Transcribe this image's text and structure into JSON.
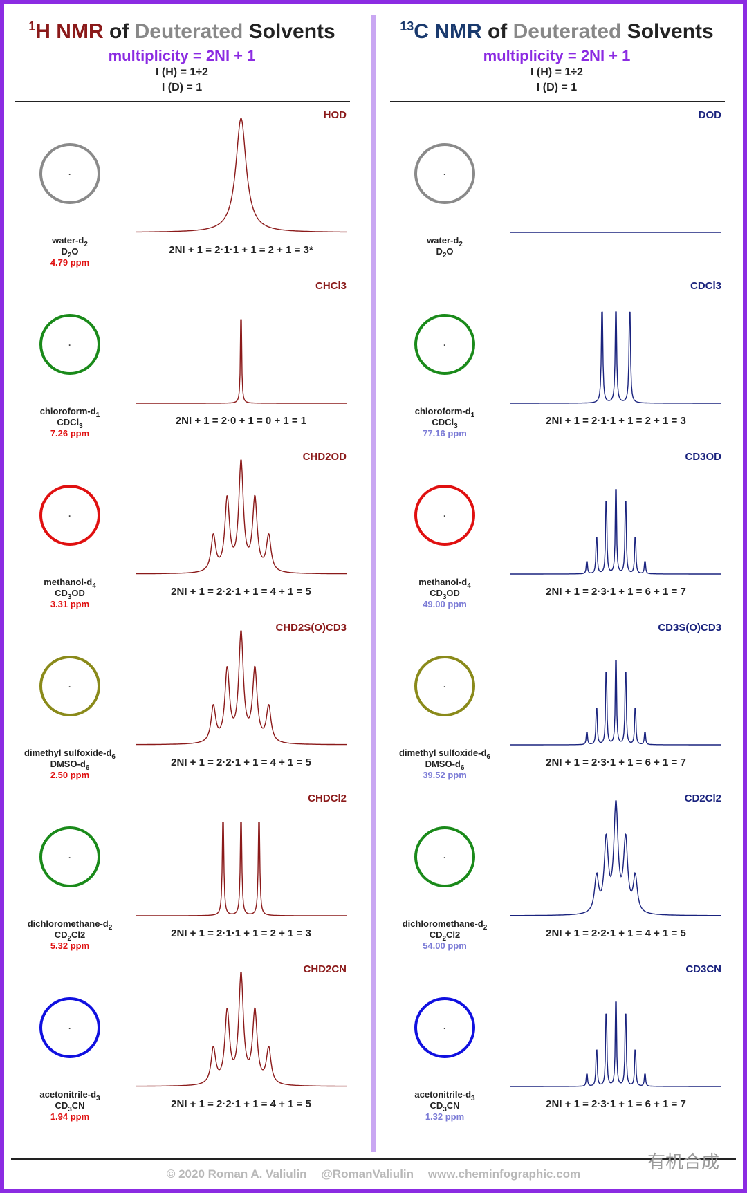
{
  "header": {
    "h": {
      "title_sup": "1",
      "title_nucleus": "H NMR",
      "title_of": " of ",
      "title_deut": "Deuterated",
      "title_solv": " Solvents",
      "multiplicity": "multiplicity = 2NI + 1",
      "spin_h": "I (H) = 1÷2",
      "spin_d": "I (D) = 1"
    },
    "c": {
      "title_sup": "13",
      "title_nucleus": "C NMR",
      "title_of": " of ",
      "title_deut": "Deuterated",
      "title_solv": " Solvents",
      "multiplicity": "multiplicity = 2NI + 1",
      "spin_h": "I (H) = 1÷2",
      "spin_d": "I (D) = 1"
    }
  },
  "colors": {
    "h_spectrum": "#8b1a1a",
    "c_spectrum": "#1a237e",
    "accent_purple": "#8b2be2",
    "ppm_h": "#e01010",
    "ppm_c": "#7b7bd6",
    "water_ring": "#8a8a8a",
    "chloroform_ring": "#1a8a1a",
    "methanol_ring": "#e01010",
    "dmso_ring": "#8a8a1a",
    "dcm_ring": "#1a8a1a",
    "acn_ring": "#1010e0"
  },
  "rows": [
    {
      "key": "water",
      "name": "water-d",
      "name_sub": "2",
      "formula": "D",
      "formula_sub": "2",
      "formula_tail": "O",
      "h_ppm": "4.79 ppm",
      "c_ppm": "",
      "h_label": "HOD",
      "c_label": "DOD",
      "h_equation": "2NI + 1 = 2·1·1 + 1 = 2 + 1 = 3*",
      "c_equation": "",
      "ring_color_key": "water_ring"
    },
    {
      "key": "chloroform",
      "name": "chloroform-d",
      "name_sub": "1",
      "formula": "CDCl",
      "formula_sub": "3",
      "formula_tail": "",
      "h_ppm": "7.26 ppm",
      "c_ppm": "77.16 ppm",
      "h_label": "CHCl3",
      "c_label": "CDCl3",
      "h_equation": "2NI + 1 = 2·0 + 1 = 0 + 1 = 1",
      "c_equation": "2NI + 1 = 2·1·1 + 1 = 2 + 1 = 3",
      "ring_color_key": "chloroform_ring"
    },
    {
      "key": "methanol",
      "name": "methanol-d",
      "name_sub": "4",
      "formula": "CD",
      "formula_sub": "3",
      "formula_tail": "OD",
      "h_ppm": "3.31 ppm",
      "c_ppm": "49.00 ppm",
      "h_label": "CHD2OD",
      "c_label": "CD3OD",
      "h_equation": "2NI + 1 = 2·2·1 + 1 = 4 + 1 = 5",
      "c_equation": "2NI + 1 = 2·3·1 + 1 = 6 + 1 = 7",
      "ring_color_key": "methanol_ring"
    },
    {
      "key": "dmso",
      "name": "dimethyl sulfoxide-d",
      "name_sub": "6",
      "formula": "DMSO-d",
      "formula_sub": "6",
      "formula_tail": "",
      "h_ppm": "2.50 ppm",
      "c_ppm": "39.52 ppm",
      "h_label": "CHD2S(O)CD3",
      "c_label": "CD3S(O)CD3",
      "h_equation": "2NI + 1 = 2·2·1 + 1 = 4 + 1 = 5",
      "c_equation": "2NI + 1 = 2·3·1 + 1 = 6 + 1 = 7",
      "ring_color_key": "dmso_ring"
    },
    {
      "key": "dcm",
      "name": "dichloromethane-d",
      "name_sub": "2",
      "formula": "CD",
      "formula_sub": "2",
      "formula_tail": "Cl2",
      "h_ppm": "5.32 ppm",
      "c_ppm": "54.00 ppm",
      "h_label": "CHDCl2",
      "c_label": "CD2Cl2",
      "h_equation": "2NI + 1 = 2·1·1 + 1 = 2 + 1 = 3",
      "c_equation": "2NI + 1 = 2·2·1 + 1 = 4 + 1 = 5",
      "ring_color_key": "dcm_ring"
    },
    {
      "key": "acn",
      "name": "acetonitrile-d",
      "name_sub": "3",
      "formula": "CD",
      "formula_sub": "3",
      "formula_tail": "CN",
      "h_ppm": "1.94 ppm",
      "c_ppm": "1.32 ppm",
      "h_label": "CHD2CN",
      "c_label": "CD3CN",
      "h_equation": "2NI + 1 = 2·2·1 + 1 = 4 + 1 = 5",
      "c_equation": "2NI + 1 = 2·3·1 + 1 = 6 + 1 = 7",
      "ring_color_key": "acn_ring"
    }
  ],
  "chart_data": [
    {
      "type": "line",
      "panel": "1H NMR",
      "solvent": "water-d2",
      "multiplicity": 3,
      "relative_intensities": [
        1,
        1,
        1
      ],
      "pattern": "broad singlet"
    },
    {
      "type": "line",
      "panel": "13C NMR",
      "solvent": "water-d2",
      "multiplicity": 0,
      "relative_intensities": [],
      "pattern": "baseline"
    },
    {
      "type": "line",
      "panel": "1H NMR",
      "solvent": "chloroform-d1",
      "multiplicity": 1,
      "relative_intensities": [
        1
      ]
    },
    {
      "type": "line",
      "panel": "13C NMR",
      "solvent": "chloroform-d1",
      "multiplicity": 3,
      "relative_intensities": [
        1,
        1,
        1
      ]
    },
    {
      "type": "line",
      "panel": "1H NMR",
      "solvent": "methanol-d4",
      "multiplicity": 5,
      "relative_intensities": [
        1,
        2,
        3,
        2,
        1
      ]
    },
    {
      "type": "line",
      "panel": "13C NMR",
      "solvent": "methanol-d4",
      "multiplicity": 7,
      "relative_intensities": [
        1,
        3,
        6,
        7,
        6,
        3,
        1
      ]
    },
    {
      "type": "line",
      "panel": "1H NMR",
      "solvent": "dimethyl sulfoxide-d6",
      "multiplicity": 5,
      "relative_intensities": [
        1,
        2,
        3,
        2,
        1
      ]
    },
    {
      "type": "line",
      "panel": "13C NMR",
      "solvent": "dimethyl sulfoxide-d6",
      "multiplicity": 7,
      "relative_intensities": [
        1,
        3,
        6,
        7,
        6,
        3,
        1
      ]
    },
    {
      "type": "line",
      "panel": "1H NMR",
      "solvent": "dichloromethane-d2",
      "multiplicity": 3,
      "relative_intensities": [
        1,
        1,
        1
      ]
    },
    {
      "type": "line",
      "panel": "13C NMR",
      "solvent": "dichloromethane-d2",
      "multiplicity": 5,
      "relative_intensities": [
        1,
        2,
        3,
        2,
        1
      ]
    },
    {
      "type": "line",
      "panel": "1H NMR",
      "solvent": "acetonitrile-d3",
      "multiplicity": 5,
      "relative_intensities": [
        1,
        2,
        3,
        2,
        1
      ]
    },
    {
      "type": "line",
      "panel": "13C NMR",
      "solvent": "acetonitrile-d3",
      "multiplicity": 7,
      "relative_intensities": [
        1,
        3,
        6,
        7,
        6,
        3,
        1
      ]
    }
  ],
  "footer": {
    "copyright": "© 2020 Roman A. Valiulin",
    "handle": "@RomanValiulin",
    "site": "www.cheminfographic.com"
  },
  "watermark": "有机合成"
}
